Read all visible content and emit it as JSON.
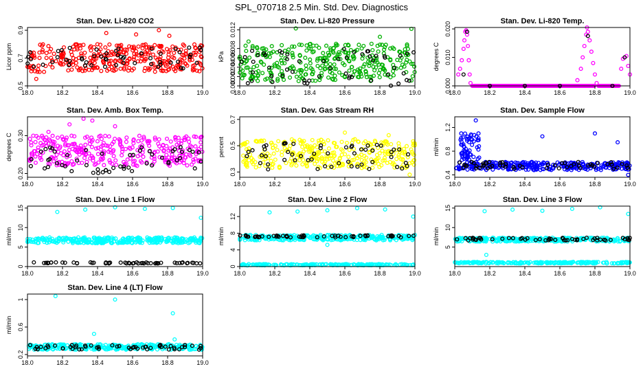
{
  "figure_title": "SPL_070718  2.5 Min. Std. Dev. Diagnostics",
  "chart_data": [
    {
      "id": "co2",
      "type": "scatter",
      "title": "Stan. Dev. Li-820 CO2",
      "ylabel": "Licor ppm",
      "xlim": [
        18.0,
        19.0
      ],
      "ylim": [
        0.5,
        0.92
      ],
      "yticks": [
        0.5,
        0.7,
        0.9
      ],
      "color": "#ff0000",
      "xticks": [
        "18.0",
        "18.2",
        "18.4",
        "18.6",
        "18.8",
        "19.0"
      ],
      "series": [
        {
          "name": "main",
          "kind": "band",
          "lo": 0.6,
          "hi": 0.8,
          "n": 330,
          "seed": 11
        },
        {
          "name": "main-outliers",
          "kind": "points",
          "points": [
            [
              18.45,
              0.88
            ],
            [
              18.62,
              0.87
            ],
            [
              18.75,
              0.9
            ],
            [
              18.81,
              0.86
            ],
            [
              19.0,
              0.49
            ],
            [
              18.05,
              0.55
            ]
          ]
        },
        {
          "name": "reference",
          "color": "#000000",
          "kind": "band",
          "lo": 0.62,
          "hi": 0.78,
          "n": 55,
          "seed": 12
        }
      ]
    },
    {
      "id": "pressure",
      "type": "scatter",
      "title": "Stan. Dev. Li-820 Pressure",
      "ylabel": "kPa",
      "xlim": [
        18.0,
        19.0
      ],
      "ylim": [
        0,
        0.0125
      ],
      "yticks": [
        0.0,
        0.002,
        0.004,
        0.006,
        0.008,
        0.012
      ],
      "ytick_labels": [
        "0.000",
        "0.002",
        "0.004",
        "0.006",
        "0.008",
        "0.012"
      ],
      "color": "#00b000",
      "xticks": [
        "18.0",
        "18.2",
        "18.4",
        "18.6",
        "18.8",
        "19.0"
      ],
      "series": [
        {
          "name": "main",
          "kind": "band",
          "lo": 0.001,
          "hi": 0.009,
          "n": 330,
          "seed": 21
        },
        {
          "name": "main-outliers",
          "kind": "points",
          "points": [
            [
              18.32,
              0.0123
            ],
            [
              18.98,
              0.0122
            ],
            [
              18.8,
              0.0105
            ],
            [
              18.05,
              0.0095
            ],
            [
              18.68,
              0.0088
            ]
          ]
        },
        {
          "name": "reference",
          "color": "#000000",
          "kind": "band",
          "lo": 0.0,
          "hi": 0.008,
          "n": 55,
          "seed": 22
        }
      ]
    },
    {
      "id": "temp820",
      "type": "scatter",
      "title": "Stan. Dev. Li-820 Temp.",
      "ylabel": "degrees C",
      "xlim": [
        18.0,
        19.0
      ],
      "ylim": [
        0,
        0.0205
      ],
      "yticks": [
        0.0,
        0.01,
        0.02
      ],
      "ytick_labels": [
        "0.000",
        "0.010",
        "0.020"
      ],
      "color": "#ff00ff",
      "xticks": [
        "18.0",
        "18.2",
        "18.4",
        "18.6",
        "18.8",
        "19.0"
      ],
      "series": [
        {
          "name": "zero-line",
          "kind": "line-points",
          "y": 0.0,
          "n": 150
        },
        {
          "name": "spike-1",
          "kind": "points",
          "points": [
            [
              18.02,
              0.004
            ],
            [
              18.03,
              0.006
            ],
            [
              18.04,
              0.009
            ],
            [
              18.05,
              0.013
            ],
            [
              18.055,
              0.016
            ],
            [
              18.06,
              0.019
            ],
            [
              18.065,
              0.0195
            ],
            [
              18.07,
              0.018
            ],
            [
              18.075,
              0.014
            ],
            [
              18.08,
              0.009
            ],
            [
              18.085,
              0.004
            ],
            [
              18.09,
              0.001
            ]
          ]
        },
        {
          "name": "spike-2",
          "kind": "points",
          "points": [
            [
              18.7,
              0.002
            ],
            [
              18.72,
              0.006
            ],
            [
              18.73,
              0.01
            ],
            [
              18.74,
              0.014
            ],
            [
              18.75,
              0.018
            ],
            [
              18.755,
              0.0205
            ],
            [
              18.76,
              0.019
            ],
            [
              18.77,
              0.016
            ],
            [
              18.78,
              0.012
            ],
            [
              18.79,
              0.008
            ],
            [
              18.8,
              0.004
            ],
            [
              18.81,
              0.001
            ],
            [
              18.95,
              0.006
            ],
            [
              18.96,
              0.0095
            ],
            [
              18.98,
              0.0105
            ],
            [
              18.99,
              0.007
            ],
            [
              19.0,
              0.004
            ]
          ]
        },
        {
          "name": "reference",
          "color": "#000000",
          "kind": "points",
          "points": [
            [
              18.05,
              0.004
            ],
            [
              18.07,
              0.019
            ],
            [
              18.2,
              0.0
            ],
            [
              18.4,
              0.0
            ],
            [
              18.6,
              0.0
            ],
            [
              18.76,
              0.0175
            ],
            [
              18.9,
              0.0
            ],
            [
              18.97,
              0.01
            ]
          ]
        }
      ]
    },
    {
      "id": "ambbox",
      "type": "scatter",
      "title": "Stan. Dev. Amb. Box Temp.",
      "ylabel": "degrees C",
      "xlim": [
        18.0,
        19.0
      ],
      "ylim": [
        0.19,
        0.35
      ],
      "yticks": [
        0.2,
        0.3
      ],
      "ytick_labels": [
        "0.20",
        "0.30"
      ],
      "color": "#ff00ff",
      "xticks": [
        "18.0",
        "18.2",
        "18.4",
        "18.6",
        "18.8",
        "19.0"
      ],
      "series": [
        {
          "name": "main",
          "kind": "band",
          "lo": 0.22,
          "hi": 0.3,
          "n": 330,
          "seed": 41
        },
        {
          "name": "main-outliers",
          "kind": "points",
          "points": [
            [
              18.24,
              0.33
            ],
            [
              18.32,
              0.345
            ],
            [
              18.37,
              0.34
            ],
            [
              18.5,
              0.325
            ],
            [
              18.12,
              0.31
            ]
          ]
        },
        {
          "name": "reference",
          "color": "#000000",
          "kind": "band",
          "lo": 0.2,
          "hi": 0.27,
          "n": 55,
          "seed": 42
        }
      ]
    },
    {
      "id": "rh",
      "type": "scatter",
      "title": "Stan. Dev. Gas Stream RH",
      "ylabel": "percent",
      "xlim": [
        18.0,
        19.0
      ],
      "ylim": [
        0.26,
        0.72
      ],
      "yticks": [
        0.3,
        0.5,
        0.7
      ],
      "color": "#ffff00",
      "xticks": [
        "18.0",
        "18.2",
        "18.4",
        "18.6",
        "18.8",
        "19.0"
      ],
      "series": [
        {
          "name": "main",
          "kind": "band",
          "lo": 0.33,
          "hi": 0.55,
          "n": 330,
          "seed": 51
        },
        {
          "name": "main-outliers",
          "kind": "points",
          "points": [
            [
              18.6,
              0.6
            ],
            [
              18.85,
              0.58
            ],
            [
              18.97,
              0.28
            ]
          ]
        },
        {
          "name": "reference",
          "color": "#000000",
          "kind": "band",
          "lo": 0.32,
          "hi": 0.52,
          "n": 55,
          "seed": 52
        }
      ]
    },
    {
      "id": "sampleflow",
      "type": "scatter",
      "title": "Stan. Dev. Sample Flow",
      "ylabel": "ml/min",
      "xlim": [
        18.0,
        19.0
      ],
      "ylim": [
        0.36,
        1.38
      ],
      "yticks": [
        0.4,
        0.8,
        1.2
      ],
      "color": "#0000ff",
      "xticks": [
        "18.0",
        "18.2",
        "18.4",
        "18.6",
        "18.8",
        "19.0"
      ],
      "series": [
        {
          "name": "main",
          "kind": "band",
          "lo": 0.48,
          "hi": 0.62,
          "n": 300,
          "seed": 61
        },
        {
          "name": "burst",
          "kind": "band",
          "lo": 0.65,
          "hi": 1.1,
          "n": 60,
          "seed": 63,
          "xrange": [
            18.03,
            18.14
          ]
        },
        {
          "name": "main-outliers",
          "kind": "points",
          "points": [
            [
              18.12,
              1.32
            ],
            [
              18.5,
              1.05
            ],
            [
              18.8,
              1.1
            ],
            [
              18.93,
              0.95
            ],
            [
              18.99,
              0.4
            ]
          ]
        },
        {
          "name": "reference",
          "color": "#000000",
          "kind": "band",
          "lo": 0.5,
          "hi": 0.62,
          "n": 55,
          "seed": 62
        }
      ]
    },
    {
      "id": "line1",
      "type": "scatter",
      "title": "Stan. Dev. Line 1 Flow",
      "ylabel": "ml/min",
      "xlim": [
        18.0,
        19.0
      ],
      "ylim": [
        0,
        15.5
      ],
      "yticks": [
        0,
        5,
        10,
        15
      ],
      "color": "#00ffff",
      "xticks": [
        "18.0",
        "18.2",
        "18.4",
        "18.6",
        "18.8",
        "19.0"
      ],
      "series": [
        {
          "name": "main",
          "kind": "band",
          "lo": 6.0,
          "hi": 7.5,
          "n": 330,
          "seed": 71
        },
        {
          "name": "main-outliers",
          "kind": "points",
          "points": [
            [
              18.17,
              14.0
            ],
            [
              18.33,
              14.6
            ],
            [
              18.5,
              15.2
            ],
            [
              18.67,
              14.8
            ],
            [
              18.83,
              15.0
            ],
            [
              18.99,
              12.5
            ]
          ]
        },
        {
          "name": "reference",
          "color": "#000000",
          "kind": "band",
          "lo": 0.8,
          "hi": 1.1,
          "n": 55,
          "seed": 72
        }
      ]
    },
    {
      "id": "line2",
      "type": "scatter",
      "title": "Stan. Dev. Line 2 Flow",
      "ylabel": "ml/min",
      "xlim": [
        18.0,
        19.0
      ],
      "ylim": [
        0,
        14.5
      ],
      "yticks": [
        0,
        4,
        8,
        12
      ],
      "color": "#00ffff",
      "xticks": [
        "18.0",
        "18.2",
        "18.4",
        "18.6",
        "18.8",
        "19.0"
      ],
      "series": [
        {
          "name": "main",
          "kind": "band",
          "lo": 6.3,
          "hi": 7.6,
          "n": 300,
          "seed": 81
        },
        {
          "name": "base",
          "kind": "band",
          "lo": 0.3,
          "hi": 0.6,
          "n": 200,
          "seed": 83
        },
        {
          "name": "main-outliers",
          "kind": "points",
          "points": [
            [
              18.17,
              13.0
            ],
            [
              18.33,
              13.2
            ],
            [
              18.5,
              13.5
            ],
            [
              18.67,
              14.0
            ],
            [
              18.83,
              13.7
            ],
            [
              18.99,
              12.0
            ],
            [
              18.5,
              5.2
            ]
          ]
        },
        {
          "name": "reference",
          "color": "#000000",
          "kind": "band",
          "lo": 7.0,
          "hi": 7.5,
          "n": 55,
          "seed": 82
        }
      ]
    },
    {
      "id": "line3",
      "type": "scatter",
      "title": "Stan. Dev. Line 3 Flow",
      "ylabel": "ml/min",
      "xlim": [
        18.0,
        19.0
      ],
      "ylim": [
        0,
        15.5
      ],
      "yticks": [
        5,
        10,
        15
      ],
      "color": "#00ffff",
      "xticks": [
        "18.0",
        "18.2",
        "18.4",
        "18.6",
        "18.8",
        "19.0"
      ],
      "series": [
        {
          "name": "main",
          "kind": "band",
          "lo": 6.4,
          "hi": 7.4,
          "n": 300,
          "seed": 91
        },
        {
          "name": "base",
          "kind": "band",
          "lo": 0.8,
          "hi": 1.2,
          "n": 200,
          "seed": 93
        },
        {
          "name": "main-outliers",
          "kind": "points",
          "points": [
            [
              18.17,
              14.2
            ],
            [
              18.33,
              14.6
            ],
            [
              18.5,
              14.3
            ],
            [
              18.67,
              14.8
            ],
            [
              18.83,
              15.2
            ],
            [
              18.99,
              13.5
            ],
            [
              18.18,
              3.0
            ]
          ]
        },
        {
          "name": "reference",
          "color": "#000000",
          "kind": "band",
          "lo": 6.7,
          "hi": 7.4,
          "n": 55,
          "seed": 92
        }
      ]
    },
    {
      "id": "line4",
      "type": "scatter",
      "title": "Stan. Dev. Line 4 (LT) Flow",
      "ylabel": "ml/min",
      "xlim": [
        18.0,
        19.0
      ],
      "ylim": [
        0.18,
        1.08
      ],
      "yticks": [
        0.2,
        0.6,
        1.0
      ],
      "color": "#00ffff",
      "xticks": [
        "18.0",
        "18.2",
        "18.4",
        "18.6",
        "18.8",
        "19.0"
      ],
      "series": [
        {
          "name": "main",
          "kind": "band",
          "lo": 0.27,
          "hi": 0.35,
          "n": 330,
          "seed": 101
        },
        {
          "name": "main-outliers",
          "kind": "points",
          "points": [
            [
              18.16,
              1.05
            ],
            [
              18.38,
              0.5
            ],
            [
              18.5,
              1.0
            ],
            [
              18.83,
              0.8
            ],
            [
              18.84,
              0.42
            ]
          ]
        },
        {
          "name": "reference",
          "color": "#000000",
          "kind": "band",
          "lo": 0.27,
          "hi": 0.34,
          "n": 55,
          "seed": 102
        }
      ]
    }
  ]
}
